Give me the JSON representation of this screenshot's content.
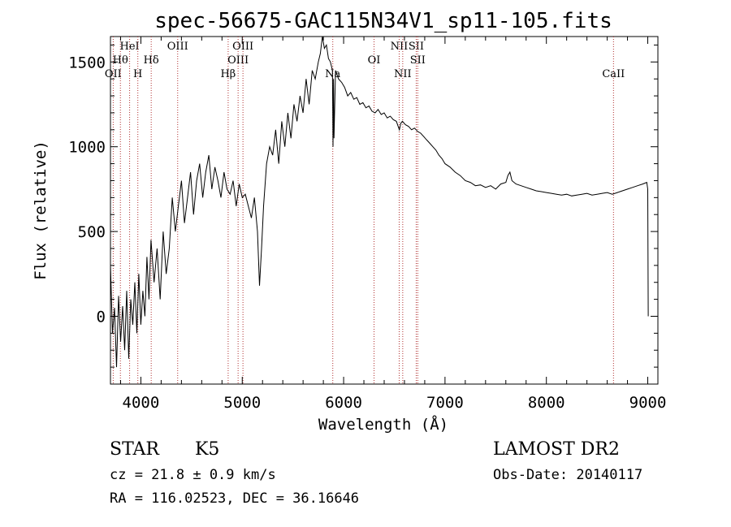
{
  "chart_data": {
    "type": "line",
    "title": "spec-56675-GAC115N34V1_sp11-105.fits",
    "xlabel": "Wavelength (Å)",
    "ylabel": "Flux (relative)",
    "xlim": [
      3700,
      9100
    ],
    "ylim": [
      -400,
      1650
    ],
    "xticks": [
      4000,
      5000,
      6000,
      7000,
      8000,
      9000
    ],
    "yticks": [
      0,
      500,
      1000,
      1500
    ],
    "x_minor_step": 200,
    "y_minor_step": 100,
    "grid": false,
    "series": [
      {
        "x": [
          3700,
          3720,
          3740,
          3760,
          3780,
          3800,
          3820,
          3840,
          3860,
          3880,
          3900,
          3920,
          3940,
          3960,
          3980,
          4000,
          4020,
          4040,
          4060,
          4080,
          4100,
          4130,
          4160,
          4190,
          4220,
          4250,
          4280,
          4310,
          4340,
          4370,
          4400,
          4430,
          4460,
          4490,
          4520,
          4550,
          4580,
          4610,
          4640,
          4670,
          4700,
          4730,
          4760,
          4790,
          4820,
          4850,
          4880,
          4910,
          4940,
          4970,
          5000,
          5030,
          5060,
          5090,
          5120,
          5150,
          5170,
          5190,
          5210,
          5240,
          5270,
          5300,
          5330,
          5360,
          5390,
          5420,
          5450,
          5480,
          5510,
          5540,
          5570,
          5600,
          5630,
          5660,
          5690,
          5720,
          5750,
          5770,
          5790,
          5810,
          5830,
          5850,
          5870,
          5890,
          5895,
          5900,
          5905,
          5920,
          5950,
          5980,
          6010,
          6040,
          6070,
          6100,
          6130,
          6160,
          6190,
          6220,
          6250,
          6280,
          6310,
          6340,
          6370,
          6400,
          6430,
          6460,
          6490,
          6520,
          6550,
          6565,
          6580,
          6610,
          6640,
          6670,
          6700,
          6730,
          6760,
          6790,
          6820,
          6850,
          6880,
          6910,
          6940,
          6970,
          7000,
          7050,
          7100,
          7150,
          7200,
          7250,
          7300,
          7350,
          7400,
          7450,
          7500,
          7550,
          7600,
          7620,
          7640,
          7660,
          7700,
          7750,
          7800,
          7850,
          7900,
          7950,
          8000,
          8050,
          8100,
          8150,
          8200,
          8250,
          8300,
          8350,
          8400,
          8450,
          8500,
          8550,
          8600,
          8650,
          8700,
          8750,
          8800,
          8850,
          8900,
          8950,
          8990,
          9000,
          9005
        ],
        "y": [
          300,
          -100,
          50,
          -300,
          120,
          -150,
          60,
          -200,
          150,
          -250,
          100,
          -50,
          200,
          -100,
          250,
          -50,
          150,
          0,
          350,
          100,
          450,
          200,
          400,
          100,
          500,
          250,
          400,
          700,
          500,
          650,
          800,
          550,
          700,
          850,
          600,
          800,
          900,
          700,
          850,
          950,
          750,
          880,
          800,
          700,
          850,
          750,
          720,
          800,
          650,
          780,
          700,
          720,
          650,
          580,
          700,
          500,
          180,
          400,
          650,
          900,
          1000,
          950,
          1100,
          900,
          1150,
          1000,
          1200,
          1050,
          1250,
          1150,
          1300,
          1200,
          1400,
          1250,
          1450,
          1400,
          1500,
          1550,
          1650,
          1580,
          1600,
          1520,
          1500,
          1450,
          1000,
          1400,
          1050,
          1450,
          1400,
          1380,
          1350,
          1300,
          1320,
          1280,
          1290,
          1250,
          1260,
          1230,
          1240,
          1210,
          1200,
          1220,
          1190,
          1200,
          1170,
          1180,
          1160,
          1150,
          1100,
          1140,
          1150,
          1130,
          1120,
          1100,
          1110,
          1090,
          1080,
          1060,
          1040,
          1020,
          1000,
          980,
          950,
          930,
          900,
          880,
          850,
          830,
          800,
          790,
          770,
          775,
          760,
          770,
          750,
          780,
          790,
          830,
          850,
          800,
          780,
          770,
          760,
          750,
          740,
          735,
          730,
          725,
          720,
          715,
          720,
          710,
          715,
          720,
          725,
          715,
          720,
          725,
          730,
          720,
          730,
          740,
          750,
          760,
          770,
          780,
          790,
          750,
          0
        ]
      }
    ],
    "line_markers": [
      {
        "wavelength": 3727,
        "label": "OII",
        "row": 3
      },
      {
        "wavelength": 3798,
        "label": "Hθ",
        "row": 2
      },
      {
        "wavelength": 3889,
        "label": "HeI",
        "row": 1
      },
      {
        "wavelength": 3970,
        "label": "H",
        "row": 3
      },
      {
        "wavelength": 4102,
        "label": "Hδ",
        "row": 2
      },
      {
        "wavelength": 4363,
        "label": "OIII",
        "row": 1
      },
      {
        "wavelength": 4861,
        "label": "Hβ",
        "row": 3
      },
      {
        "wavelength": 4959,
        "label": "OIII",
        "row": 2
      },
      {
        "wavelength": 5007,
        "label": "OIII",
        "row": 1
      },
      {
        "wavelength": 5893,
        "label": "Na",
        "row": 3
      },
      {
        "wavelength": 6300,
        "label": "OI",
        "row": 2
      },
      {
        "wavelength": 6548,
        "label": "NII",
        "row": 1
      },
      {
        "wavelength": 6583,
        "label": "NII",
        "row": 3
      },
      {
        "wavelength": 6716,
        "label": "SII",
        "row": 1
      },
      {
        "wavelength": 6731,
        "label": "SII",
        "row": 2
      },
      {
        "wavelength": 8662,
        "label": "CaII",
        "row": 3
      }
    ],
    "marker_color": "#b03030"
  },
  "info": {
    "class": "STAR",
    "subclass": "K5",
    "redshift": "cz = 21.8 ± 0.9 km/s",
    "coords": "RA = 116.02523, DEC =  36.16646",
    "survey": "LAMOST DR2",
    "obs_date": "Obs-Date: 20140117"
  }
}
